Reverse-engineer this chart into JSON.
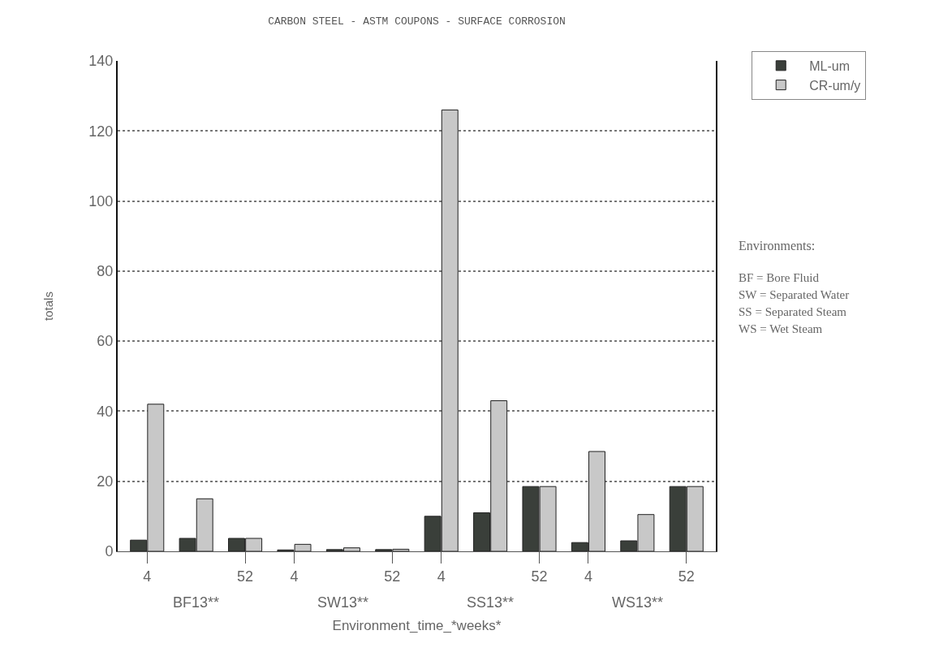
{
  "chart_data": {
    "type": "bar",
    "title": "CARBON STEEL - ASTM COUPONS - SURFACE CORROSION",
    "xlabel": "Environment_time_*weeks*",
    "ylabel": "totals",
    "categories": [
      "4",
      null,
      "52",
      "4",
      null,
      "52",
      "4",
      null,
      "52",
      "4",
      null,
      "52"
    ],
    "series": [
      {
        "name": "ML-um",
        "color": "#3a3f3a",
        "values": [
          3.2,
          3.7,
          3.7,
          0.4,
          0.5,
          0.5,
          10,
          11,
          18.5,
          2.5,
          3,
          18.5
        ]
      },
      {
        "name": "CR-um/y",
        "color": "#c8c8c8",
        "values": [
          42,
          15,
          3.7,
          2,
          1,
          0.6,
          126,
          43,
          18.5,
          28.5,
          10.5,
          18.5
        ]
      }
    ],
    "ylim": [
      0,
      140
    ],
    "yticks": [
      0,
      20,
      40,
      60,
      80,
      100,
      120,
      140
    ],
    "grid": "y",
    "legend": "top right",
    "annotations": [
      "BF13**",
      "SW13**",
      "SS13**",
      "WS13**",
      "Environments:",
      "BF = Bore Fluid",
      "SW = Separated Water",
      "SS = Separated Steam",
      "WS = Wet Steam"
    ]
  }
}
